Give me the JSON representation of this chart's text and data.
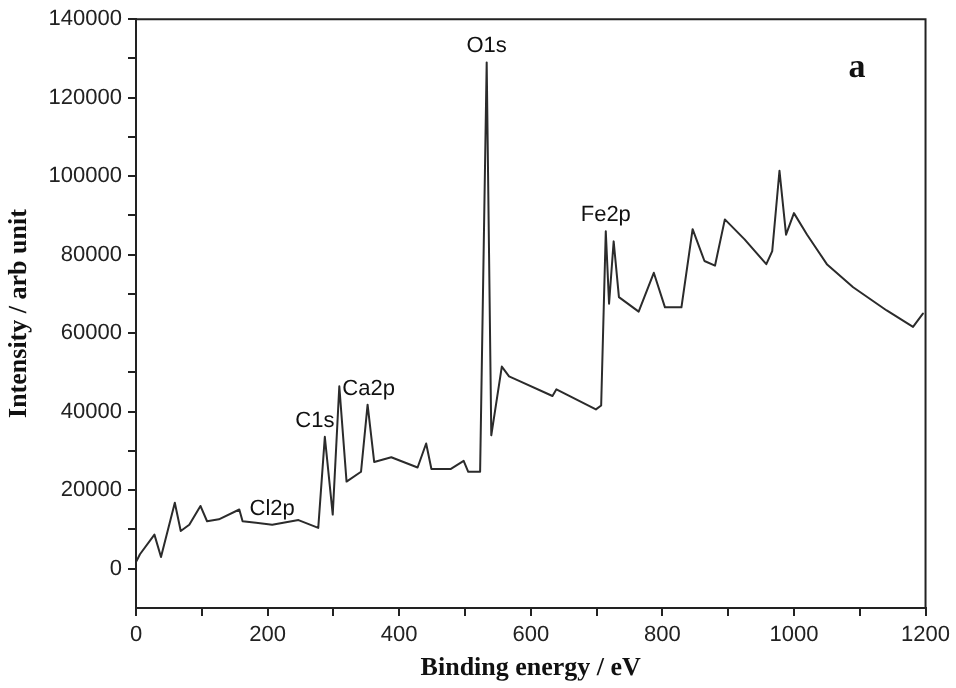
{
  "chart_data": {
    "type": "line",
    "xlabel": "Binding energy / eV",
    "ylabel": "Intensity / arb unit",
    "x": [
      1,
      6,
      28,
      38,
      59,
      68,
      81,
      98,
      108,
      126,
      157,
      162,
      207,
      247,
      277,
      287,
      299,
      309,
      320,
      342,
      352,
      362,
      388,
      428,
      441,
      449,
      478,
      498,
      505,
      523,
      533,
      540,
      556,
      567,
      578,
      633,
      639,
      699,
      707,
      714,
      719,
      726,
      734,
      764,
      787,
      804,
      829,
      846,
      864,
      880,
      895,
      925,
      958,
      967,
      978,
      988,
      1000,
      1020,
      1050,
      1090,
      1141,
      1181,
      1196
    ],
    "series": [
      {
        "color": "#2b2b2b",
        "values": [
          2000,
          3700,
          8700,
          3000,
          16800,
          9600,
          11200,
          16000,
          12100,
          12600,
          15100,
          12100,
          11200,
          12400,
          10400,
          33600,
          13800,
          46500,
          22200,
          24700,
          41800,
          27200,
          28400,
          25800,
          31900,
          25400,
          25400,
          27500,
          24700,
          24700,
          129000,
          34000,
          51500,
          49000,
          48200,
          44000,
          45700,
          40600,
          41600,
          86000,
          67500,
          83400,
          69200,
          65500,
          75400,
          66600,
          66600,
          86500,
          78400,
          77200,
          89000,
          83900,
          77600,
          80900,
          101400,
          85100,
          90600,
          85100,
          77600,
          71700,
          65800,
          61600,
          65000
        ]
      }
    ],
    "xlim": [
      0,
      1200
    ],
    "xticks": [
      0,
      {
        "value": 100,
        "label": null
      },
      200,
      {
        "value": 300,
        "label": null
      },
      400,
      {
        "value": 500,
        "label": null
      },
      600,
      {
        "value": 700,
        "label": null
      },
      800,
      {
        "value": 900,
        "label": null
      },
      1000,
      {
        "value": 1100,
        "label": null
      },
      1200
    ],
    "ylim": [
      -10000,
      140000
    ],
    "yticks": [
      0,
      {
        "value": 10000,
        "label": null
      },
      20000,
      {
        "value": 30000,
        "label": null
      },
      40000,
      {
        "value": 50000,
        "label": null
      },
      60000,
      {
        "value": 70000,
        "label": null
      },
      80000,
      {
        "value": 90000,
        "label": null
      },
      100000,
      {
        "value": 110000,
        "label": null
      },
      120000,
      {
        "value": 130000,
        "label": null
      },
      140000
    ],
    "grid": false,
    "legend": false,
    "marker": "none",
    "line_style": "solid",
    "annotations": [
      "a",
      {
        "text": "O1s",
        "x": 533,
        "y": 129000
      },
      {
        "text": "C1s",
        "x": 287,
        "y": 33600
      },
      {
        "text": "Ca2p",
        "x": 352,
        "y": 41800
      },
      {
        "text": "Fe2p",
        "x": 714,
        "y": 86000
      },
      {
        "text": "Cl2p",
        "x": 207,
        "y": 11200
      }
    ]
  }
}
